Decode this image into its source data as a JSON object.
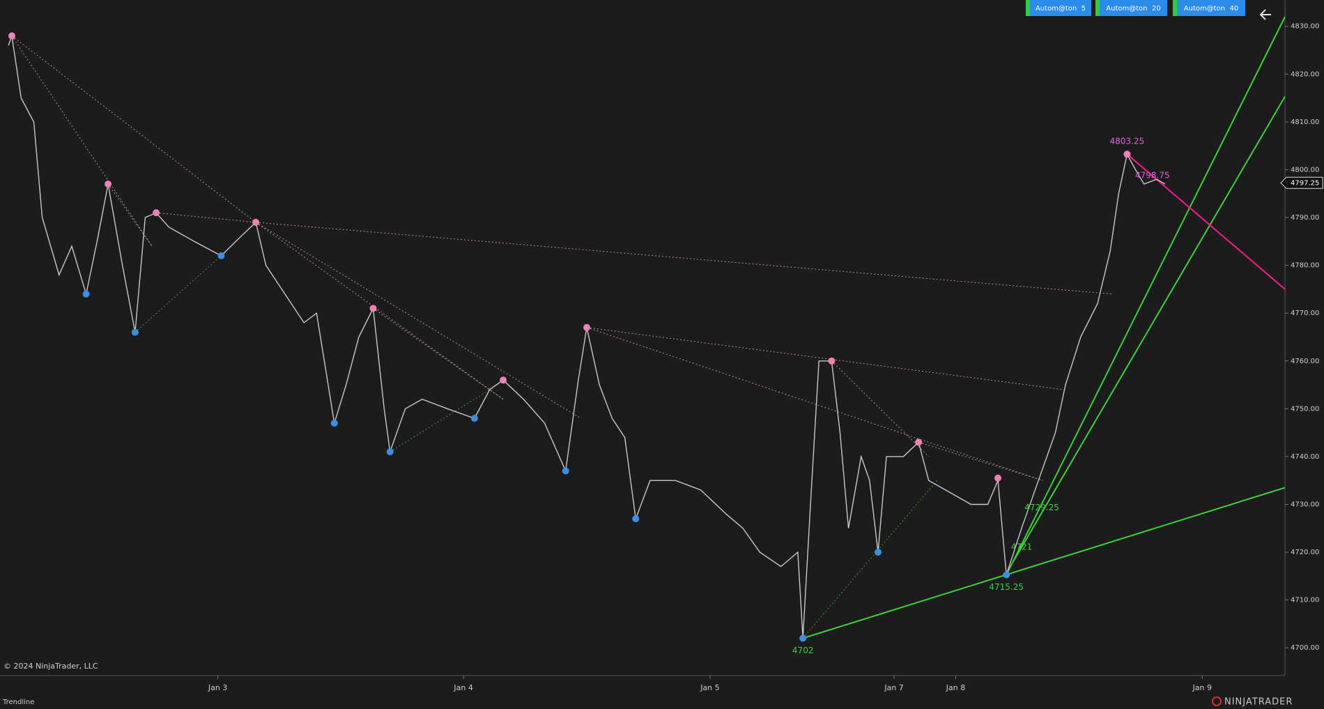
{
  "chart_data": {
    "type": "line",
    "xlim": [
      0,
      1522
    ],
    "ylim": [
      4694.2,
      4835.5
    ],
    "xticks": [
      {
        "value": 258,
        "label": "Jan 3"
      },
      {
        "value": 549,
        "label": "Jan 4"
      },
      {
        "value": 841,
        "label": "Jan 5"
      },
      {
        "value": 1059,
        "label": "Jan 7"
      },
      {
        "value": 1132,
        "label": "Jan 8"
      },
      {
        "value": 1424,
        "label": "Jan 9"
      }
    ],
    "yticks": [
      {
        "value": 4700,
        "label": "4700.00"
      },
      {
        "value": 4710,
        "label": "4710.00"
      },
      {
        "value": 4720,
        "label": "4720.00"
      },
      {
        "value": 4730,
        "label": "4730.00"
      },
      {
        "value": 4740,
        "label": "4740.00"
      },
      {
        "value": 4750,
        "label": "4750.00"
      },
      {
        "value": 4760,
        "label": "4760.00"
      },
      {
        "value": 4770,
        "label": "4770.00"
      },
      {
        "value": 4780,
        "label": "4780.00"
      },
      {
        "value": 4790,
        "label": "4790.00"
      },
      {
        "value": 4800,
        "label": "4800.00"
      },
      {
        "value": 4810,
        "label": "4810.00"
      },
      {
        "value": 4820,
        "label": "4820.00"
      },
      {
        "value": 4830,
        "label": "4830.00"
      }
    ],
    "grid": false,
    "price": {
      "color": "#c9c9c9",
      "x": [
        10,
        14,
        25,
        40,
        50,
        70,
        85,
        102,
        115,
        128,
        145,
        160,
        172,
        185,
        200,
        230,
        262,
        285,
        303,
        315,
        330,
        360,
        375,
        396,
        410,
        425,
        442,
        455,
        462,
        480,
        500,
        530,
        562,
        580,
        596,
        620,
        645,
        670,
        685,
        695,
        710,
        725,
        740,
        753,
        770,
        800,
        830,
        860,
        880,
        900,
        925,
        945,
        951,
        960,
        970,
        985,
        995,
        1005,
        1020,
        1030,
        1040,
        1050,
        1070,
        1088,
        1100,
        1120,
        1150,
        1170,
        1182,
        1192,
        1210,
        1230,
        1250,
        1262,
        1280,
        1300,
        1315,
        1325,
        1335,
        1345,
        1355,
        1370,
        1380
      ],
      "values": [
        4826,
        4828,
        4815,
        4810,
        4790,
        4778,
        4784,
        4774,
        4785,
        4797,
        4780,
        4766,
        4790,
        4791,
        4788,
        4785,
        4782,
        4786,
        4789,
        4780,
        4776,
        4768,
        4770,
        4747,
        4755,
        4765,
        4771,
        4750,
        4741,
        4750,
        4752,
        4750,
        4748,
        4754,
        4756,
        4752,
        4747,
        4737,
        4756,
        4767,
        4755,
        4748,
        4744,
        4727,
        4735,
        4735,
        4733,
        4728,
        4725,
        4720,
        4717,
        4720,
        4702,
        4730,
        4760,
        4760,
        4745,
        4725,
        4740,
        4735,
        4720,
        4740,
        4740,
        4743,
        4735,
        4733,
        4730,
        4730,
        4735,
        4715.25,
        4725,
        4735,
        4745,
        4755,
        4765,
        4772,
        4783,
        4795,
        4803.25,
        4800,
        4797,
        4798,
        4797
      ]
    },
    "highs": {
      "color": "#ee82b4",
      "x": [
        14,
        128,
        185,
        303,
        442,
        596,
        695,
        985,
        1088,
        1182,
        1335
      ],
      "values": [
        4828,
        4797,
        4791,
        4789,
        4771,
        4756,
        4767,
        4760,
        4743,
        4735.5,
        4803.25
      ]
    },
    "lows": {
      "color": "#3a8fe0",
      "x": [
        102,
        160,
        262,
        396,
        462,
        562,
        670,
        753,
        951,
        1040,
        1192
      ],
      "values": [
        4774,
        4766,
        4782,
        4747,
        4741,
        4748,
        4737,
        4727,
        4702,
        4720,
        4715.25
      ]
    },
    "trendlines": [
      {
        "color": "#b89090",
        "style": "dotted",
        "x": [
          14,
          303
        ],
        "values": [
          4828,
          4789
        ]
      },
      {
        "color": "#b89090",
        "style": "dotted",
        "x": [
          14,
          180
        ],
        "values": [
          4828,
          4784
        ]
      },
      {
        "color": "#b89090",
        "style": "dotted",
        "x": [
          128,
          180
        ],
        "values": [
          4797,
          4784
        ]
      },
      {
        "color": "#b89090",
        "style": "dotted",
        "x": [
          185,
          303
        ],
        "values": [
          4791,
          4789
        ]
      },
      {
        "color": "#b89090",
        "style": "dotted",
        "x": [
          303,
          1318
        ],
        "values": [
          4789,
          4774
        ]
      },
      {
        "color": "#b89090",
        "style": "dotted",
        "x": [
          303,
          688
        ],
        "values": [
          4789,
          4748
        ]
      },
      {
        "color": "#b89090",
        "style": "dotted",
        "x": [
          303,
          596
        ],
        "values": [
          4789,
          4752
        ]
      },
      {
        "color": "#b89090",
        "style": "dotted",
        "x": [
          442,
          596
        ],
        "values": [
          4771,
          4752
        ]
      },
      {
        "color": "#b89090",
        "style": "dotted",
        "x": [
          695,
          1260
        ],
        "values": [
          4767,
          4754
        ]
      },
      {
        "color": "#b89090",
        "style": "dotted",
        "x": [
          695,
          1235
        ],
        "values": [
          4767,
          4735
        ]
      },
      {
        "color": "#b89090",
        "style": "dotted",
        "x": [
          985,
          1100
        ],
        "values": [
          4760,
          4740
        ]
      },
      {
        "color": "#b89090",
        "style": "dotted",
        "x": [
          1088,
          1235
        ],
        "values": [
          4743,
          4735
        ]
      },
      {
        "color": "#3a9a3a",
        "style": "dotted",
        "x": [
          160,
          262
        ],
        "values": [
          4766,
          4782
        ]
      },
      {
        "color": "#3a9a3a",
        "style": "dotted",
        "x": [
          462,
          580
        ],
        "values": [
          4741,
          4754
        ]
      },
      {
        "color": "#3a9a3a",
        "style": "dotted",
        "x": [
          951,
          1110
        ],
        "values": [
          4702,
          4735
        ]
      },
      {
        "color": "#3fcf3f",
        "style": "solid",
        "x": [
          951,
          1522
        ],
        "values": [
          4702,
          4733.5
        ]
      },
      {
        "color": "#3fcf3f",
        "style": "solid",
        "x": [
          1192,
          1522
        ],
        "values": [
          4715.25,
          4832
        ]
      },
      {
        "color": "#3fcf3f",
        "style": "solid",
        "x": [
          1200,
          1522
        ],
        "values": [
          4718,
          4815.3
        ]
      },
      {
        "color": "#ff1a8c",
        "style": "solid",
        "x": [
          1335,
          1522
        ],
        "values": [
          4803.25,
          4775
        ]
      }
    ],
    "point_labels": [
      {
        "x": 1365,
        "value": 4798.75,
        "color": "#e060e0"
      },
      {
        "x": 1234,
        "value": 4729.25,
        "color": "#3fcf3f"
      },
      {
        "x": 1210,
        "value": 4721,
        "color": "#3fcf3f"
      }
    ],
    "last_price": 4797.25
  },
  "toolbar": {
    "buttons": [
      "Autom@ton  5",
      "Autom@ton  20",
      "Autom@ton  40"
    ]
  },
  "footer": {
    "copyright": "© 2024 NinjaTrader, LLC",
    "panel": "Trendline",
    "logo": "NINJATRADER"
  }
}
